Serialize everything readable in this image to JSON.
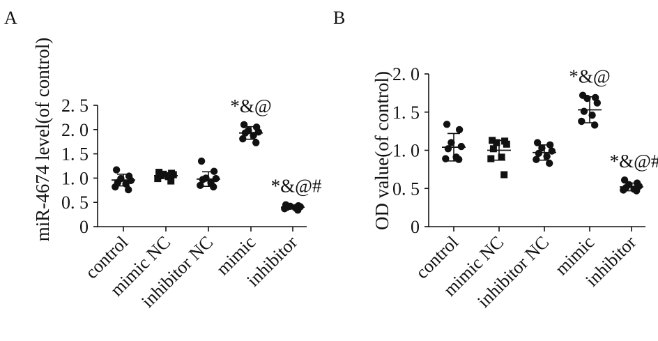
{
  "chart_data": [
    {
      "panel_label": "A",
      "type": "scatter",
      "title": "",
      "xlabel": "",
      "ylabel": "miR-4674 level(of control)",
      "ylim": [
        0,
        2.5
      ],
      "y_ticks": [
        {
          "value": 0,
          "label": "0"
        },
        {
          "value": 0.5,
          "label": "0. 5"
        },
        {
          "value": 1.0,
          "label": "1. 0"
        },
        {
          "value": 1.5,
          "label": "1. 5"
        },
        {
          "value": 2.0,
          "label": "2. 0"
        },
        {
          "value": 2.5,
          "label": "2. 5"
        }
      ],
      "categories": [
        "control",
        "mimic NC",
        "inhibitor NC",
        "mimic",
        "inhibitor"
      ],
      "groups": [
        {
          "category": "control",
          "marker": "circle",
          "mean": 0.96,
          "sd": 0.12,
          "points": [
            1.17,
            1.04,
            0.99,
            0.95,
            0.91,
            0.88,
            0.82,
            0.76
          ],
          "annotation": ""
        },
        {
          "category": "mimic NC",
          "marker": "square",
          "mean": 1.05,
          "sd": 0.06,
          "points": [
            1.12,
            1.1,
            1.08,
            1.07,
            1.05,
            1.03,
            0.99,
            0.94
          ],
          "annotation": ""
        },
        {
          "category": "inhibitor NC",
          "marker": "circle",
          "mean": 0.98,
          "sd": 0.15,
          "points": [
            1.35,
            1.14,
            1.0,
            0.99,
            0.97,
            0.9,
            0.85,
            0.82
          ],
          "annotation": ""
        },
        {
          "category": "mimic",
          "marker": "circle",
          "mean": 1.93,
          "sd": 0.13,
          "points": [
            2.1,
            2.05,
            1.98,
            1.95,
            1.93,
            1.88,
            1.81,
            1.73
          ],
          "annotation": "*&@"
        },
        {
          "category": "inhibitor",
          "marker": "circle",
          "mean": 0.4,
          "sd": 0.03,
          "points": [
            0.45,
            0.43,
            0.42,
            0.41,
            0.4,
            0.39,
            0.37,
            0.34
          ],
          "annotation": "*&@#"
        }
      ]
    },
    {
      "panel_label": "B",
      "type": "scatter",
      "title": "",
      "xlabel": "",
      "ylabel": "OD value(of control)",
      "ylim": [
        0,
        2.0
      ],
      "y_ticks": [
        {
          "value": 0,
          "label": "0"
        },
        {
          "value": 0.5,
          "label": "0. 5"
        },
        {
          "value": 1.0,
          "label": "1. 0"
        },
        {
          "value": 1.5,
          "label": "1. 5"
        },
        {
          "value": 2.0,
          "label": "2. 0"
        }
      ],
      "categories": [
        "control",
        "mimic NC",
        "inhibitor NC",
        "mimic",
        "inhibitor"
      ],
      "groups": [
        {
          "category": "control",
          "marker": "circle",
          "mean": 1.04,
          "sd": 0.18,
          "points": [
            1.34,
            1.27,
            1.1,
            1.05,
            1.02,
            0.91,
            0.89,
            0.88
          ],
          "annotation": ""
        },
        {
          "category": "mimic NC",
          "marker": "square",
          "mean": 1.0,
          "sd": 0.13,
          "points": [
            1.13,
            1.12,
            1.1,
            1.08,
            1.02,
            0.91,
            0.89,
            0.68
          ],
          "annotation": ""
        },
        {
          "category": "inhibitor NC",
          "marker": "circle",
          "mean": 0.97,
          "sd": 0.1,
          "points": [
            1.1,
            1.07,
            1.03,
            0.99,
            0.96,
            0.92,
            0.88,
            0.83
          ],
          "annotation": ""
        },
        {
          "category": "mimic",
          "marker": "circle",
          "mean": 1.53,
          "sd": 0.17,
          "points": [
            1.72,
            1.69,
            1.68,
            1.62,
            1.51,
            1.46,
            1.38,
            1.33
          ],
          "annotation": "*&@"
        },
        {
          "category": "inhibitor",
          "marker": "circle",
          "mean": 0.52,
          "sd": 0.05,
          "points": [
            0.61,
            0.57,
            0.55,
            0.53,
            0.51,
            0.49,
            0.48,
            0.47
          ],
          "annotation": "*&@#"
        }
      ]
    }
  ]
}
